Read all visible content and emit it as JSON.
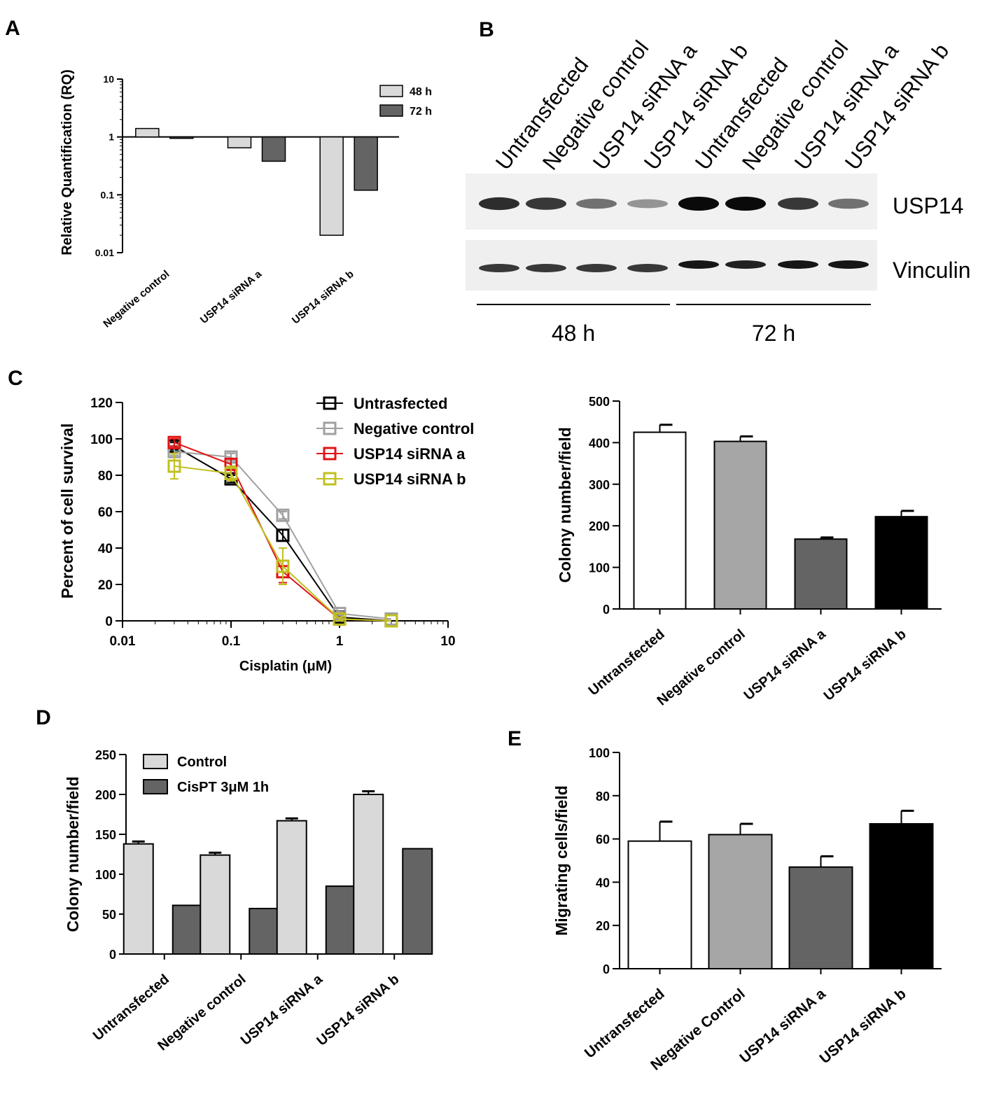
{
  "panels": {
    "A": "A",
    "B": "B",
    "C": "C",
    "D": "D",
    "E": "E"
  },
  "colors": {
    "light_gray": "#d9d9d9",
    "dark_gray": "#646464",
    "mid_gray": "#a6a6a6",
    "black": "#000000",
    "white": "#ffffff",
    "red": "#e01414",
    "olive": "#c0c020",
    "line_gray": "#a0a0a0"
  },
  "chart_data": [
    {
      "id": "A",
      "type": "bar",
      "scale": "log",
      "ylabel": "Relative Quantification (RQ)",
      "categories": [
        "Negative control",
        "USP14 siRNA a",
        "USP14 siRNA b"
      ],
      "yticks": [
        {
          "v": 10,
          "t": "10"
        },
        {
          "v": 1,
          "t": "1"
        },
        {
          "v": 0.1,
          "t": "0.1"
        },
        {
          "v": 0.01,
          "t": "0.01"
        }
      ],
      "ylim": [
        0.01,
        10
      ],
      "baseline": 1,
      "series": [
        {
          "name": "48 h",
          "color": "#d9d9d9",
          "values": [
            1.4,
            0.65,
            0.02
          ]
        },
        {
          "name": "72 h",
          "color": "#646464",
          "values": [
            0.98,
            0.38,
            0.12
          ]
        }
      ],
      "legend": "top-right"
    },
    {
      "id": "B",
      "type": "blot",
      "lanes": [
        "Untransfected",
        "Negative control",
        "USP14 siRNA a",
        "USP14 siRNA b",
        "Untransfected",
        "Negative control",
        "USP14 siRNA a",
        "USP14 siRNA b"
      ],
      "rows": [
        {
          "label": "USP14",
          "intensity": [
            0.85,
            0.8,
            0.55,
            0.4,
            1.0,
            1.0,
            0.8,
            0.55
          ]
        },
        {
          "label": "Vinculin",
          "intensity": [
            0.8,
            0.8,
            0.8,
            0.8,
            0.95,
            0.9,
            0.95,
            0.95
          ]
        }
      ],
      "groups": [
        {
          "label": "48 h",
          "lanes": [
            0,
            3
          ]
        },
        {
          "label": "72 h",
          "lanes": [
            4,
            7
          ]
        }
      ]
    },
    {
      "id": "C1",
      "type": "line",
      "scale_x": "log",
      "xlabel": "Cisplatin (μM)",
      "ylabel": "Percent of cell survival",
      "xticks": [
        {
          "v": 0.01,
          "t": "0.01"
        },
        {
          "v": 0.1,
          "t": "0.1"
        },
        {
          "v": 1,
          "t": "1"
        },
        {
          "v": 10,
          "t": "10"
        }
      ],
      "yticks": [
        0,
        20,
        40,
        60,
        80,
        100,
        120
      ],
      "xlim": [
        0.01,
        10
      ],
      "ylim": [
        0,
        120
      ],
      "x": [
        0.03,
        0.1,
        0.3,
        1,
        3
      ],
      "series": [
        {
          "name": "Untrasfected",
          "color": "#000000",
          "values": [
            96,
            78,
            47,
            2,
            0
          ],
          "err": [
            2,
            2,
            3,
            1,
            0
          ]
        },
        {
          "name": "Negative control",
          "color": "#a0a0a0",
          "values": [
            93,
            90,
            58,
            4,
            1
          ],
          "err": [
            2,
            2,
            2,
            1,
            0
          ]
        },
        {
          "name": "USP14 siRNA a",
          "color": "#e01414",
          "values": [
            98,
            86,
            27,
            1,
            0
          ],
          "err": [
            2,
            3,
            6,
            1,
            0
          ]
        },
        {
          "name": "USP14 siRNA b",
          "color": "#c0c020",
          "values": [
            85,
            81,
            30,
            1,
            0
          ],
          "err": [
            7,
            4,
            10,
            1,
            0
          ]
        }
      ],
      "legend": "top-right"
    },
    {
      "id": "C2",
      "type": "bar",
      "ylabel": "Colony number/field",
      "categories": [
        "Untransfected",
        "Negative control",
        "USP14 siRNA a",
        "USP14 siRNA b"
      ],
      "yticks": [
        0,
        100,
        200,
        300,
        400,
        500
      ],
      "ylim": [
        0,
        500
      ],
      "values": [
        425,
        403,
        168,
        222
      ],
      "err": [
        18,
        12,
        4,
        14
      ],
      "colors": [
        "#ffffff",
        "#a6a6a6",
        "#646464",
        "#000000"
      ]
    },
    {
      "id": "D",
      "type": "bar",
      "ylabel": "Colony number/field",
      "categories": [
        "Untransfected",
        "Negative control",
        "USP14 siRNA a",
        "USP14 siRNA b"
      ],
      "yticks": [
        0,
        50,
        100,
        150,
        200,
        250
      ],
      "ylim": [
        0,
        250
      ],
      "series": [
        {
          "name": "Control",
          "color": "#d9d9d9",
          "values": [
            138,
            124,
            167,
            200
          ],
          "err": [
            3,
            3,
            3,
            4
          ]
        },
        {
          "name": "CisPT 3μM 1h",
          "color": "#646464",
          "values": [
            61,
            57,
            85,
            132
          ],
          "err": [
            0,
            0,
            0,
            0
          ]
        }
      ],
      "legend": "top-left"
    },
    {
      "id": "E",
      "type": "bar",
      "ylabel": "Migrating cells/field",
      "categories": [
        "Untransfected",
        "Negative Control",
        "USP14 siRNA a",
        "USP14 siRNA b"
      ],
      "yticks": [
        0,
        20,
        40,
        60,
        80,
        100
      ],
      "ylim": [
        0,
        100
      ],
      "values": [
        59,
        62,
        47,
        67
      ],
      "err": [
        9,
        5,
        5,
        6
      ],
      "colors": [
        "#ffffff",
        "#a6a6a6",
        "#646464",
        "#000000"
      ]
    }
  ]
}
